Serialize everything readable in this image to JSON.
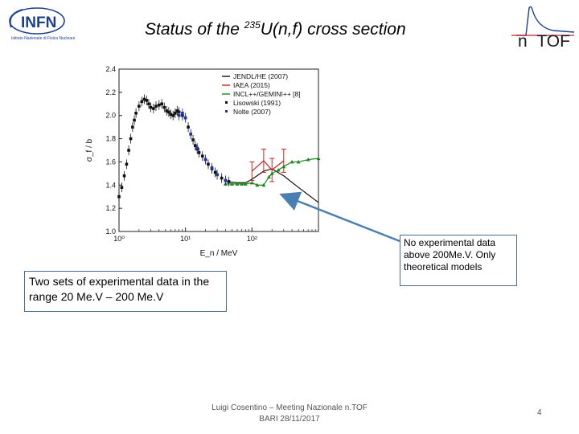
{
  "header": {
    "infn_logo_text": "INFN",
    "infn_subtitle": "Istituto Nazionale di Fisica Nucleare",
    "title_prefix": "Status of the ",
    "title_isotope": "235",
    "title_suffix": "U(n,f) cross section",
    "ntof_logo_text": "n_TOF"
  },
  "chart_data": {
    "type": "scatter",
    "title": "",
    "xlabel": "E_n / MeV",
    "ylabel": "σ_f / b",
    "xscale": "log",
    "xlim": [
      1,
      1000
    ],
    "ylim": [
      1.0,
      2.4
    ],
    "yticks": [
      "1.0",
      "1.2",
      "1.4",
      "1.6",
      "1.8",
      "2.0",
      "2.2",
      "2.4"
    ],
    "xticks": [
      "10⁰",
      "10¹",
      "10²"
    ],
    "series": [
      {
        "name": "JENDL/HE (2007)",
        "kind": "line",
        "color": "#111111",
        "x": [
          40,
          60,
          80,
          100,
          150,
          200,
          300,
          500,
          1000
        ],
        "y": [
          1.43,
          1.42,
          1.42,
          1.45,
          1.52,
          1.54,
          1.48,
          1.38,
          1.25
        ]
      },
      {
        "name": "IAEA (2015)",
        "kind": "errorbar",
        "color": "#cc2222",
        "x": [
          100,
          150,
          200,
          300
        ],
        "y": [
          1.52,
          1.61,
          1.53,
          1.61
        ],
        "err": [
          0.08,
          0.1,
          0.1,
          0.1
        ]
      },
      {
        "name": "INCL++/GEMINI++ [8]",
        "kind": "line-marker",
        "color": "#1a8a1a",
        "x": [
          40,
          50,
          60,
          70,
          80,
          100,
          120,
          150,
          180,
          200,
          250,
          300,
          400,
          500,
          700,
          1000
        ],
        "y": [
          1.41,
          1.41,
          1.41,
          1.41,
          1.41,
          1.42,
          1.4,
          1.4,
          1.47,
          1.5,
          1.53,
          1.56,
          1.6,
          1.6,
          1.62,
          1.63
        ]
      },
      {
        "name": "Lisowski (1991)",
        "kind": "points",
        "color": "#111111",
        "x": [
          1.0,
          1.1,
          1.2,
          1.3,
          1.4,
          1.5,
          1.6,
          1.7,
          1.8,
          2.0,
          2.2,
          2.4,
          2.6,
          2.8,
          3.0,
          3.3,
          3.6,
          4.0,
          4.4,
          4.8,
          5.2,
          5.6,
          6.0,
          6.5,
          7.0,
          7.5,
          8.0,
          9.0,
          10,
          11,
          12,
          13,
          14,
          15,
          16,
          18,
          20,
          22,
          25,
          28,
          30,
          35,
          40,
          45
        ],
        "y": [
          1.3,
          1.38,
          1.48,
          1.58,
          1.7,
          1.8,
          1.9,
          1.96,
          2.02,
          2.08,
          2.12,
          2.14,
          2.13,
          2.1,
          2.07,
          2.06,
          2.08,
          2.09,
          2.1,
          2.07,
          2.04,
          2.03,
          2.01,
          2.0,
          2.02,
          2.04,
          2.03,
          2.0,
          1.98,
          1.9,
          1.84,
          1.79,
          1.74,
          1.71,
          1.68,
          1.65,
          1.62,
          1.58,
          1.54,
          1.51,
          1.49,
          1.46,
          1.44,
          1.43
        ]
      },
      {
        "name": "Nolte (2007)",
        "kind": "points",
        "color": "#2233aa",
        "x": [
          8,
          9,
          10,
          12,
          15,
          20,
          25,
          30,
          40
        ],
        "y": [
          2.0,
          2.02,
          1.98,
          1.84,
          1.72,
          1.62,
          1.55,
          1.49,
          1.44
        ]
      }
    ]
  },
  "annotations": {
    "left_box": "Two sets of experimental data in the range  20 Me.V – 200 Me.V",
    "right_box": "No experimental data above 200Me.V. Only theoretical models"
  },
  "footer": {
    "line1": "Luigi Cosentino – Meeting Nazionale n.TOF",
    "line2": "BARI 28/11/2017",
    "page_number": "4"
  },
  "colors": {
    "infn_blue": "#1b3f8f",
    "arrow": "#4a7fb5",
    "box_border": "#4a6b8a"
  }
}
